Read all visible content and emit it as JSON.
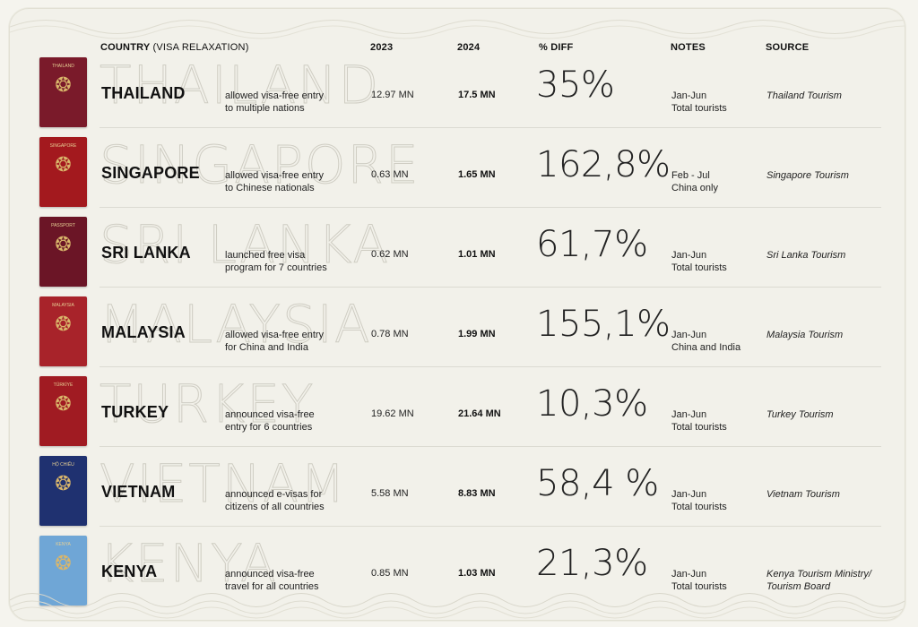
{
  "headers": {
    "country": "COUNTRY",
    "country_sub": "(VISA RELAXATION)",
    "y2023": "2023",
    "y2024": "2024",
    "diff": "% DIFF",
    "notes": "NOTES",
    "source": "SOURCE"
  },
  "rows": [
    {
      "country": "THAILAND",
      "watermark": "THAILAND",
      "desc": [
        "allowed visa-free entry",
        "to multiple nations"
      ],
      "v2023": "12.97 MN",
      "v2024": "17.5 MN",
      "diff": "35%",
      "notes": [
        "Jan-Jun",
        "Total tourists"
      ],
      "source": [
        "Thailand Tourism",
        ""
      ],
      "passport_color": "#7a1a2a",
      "passport_title": "THAILAND"
    },
    {
      "country": "SINGAPORE",
      "watermark": "SINGAPORE",
      "desc": [
        "allowed visa-free entry",
        "to Chinese nationals"
      ],
      "v2023": "0.63 MN",
      "v2024": "1.65 MN",
      "diff": "162,8%",
      "notes": [
        "Feb - Jul",
        "China only"
      ],
      "source": [
        "Singapore Tourism",
        ""
      ],
      "passport_color": "#a3191e",
      "passport_title": "SINGAPORE"
    },
    {
      "country": "SRI LANKA",
      "watermark": "SRI LANKA",
      "desc": [
        "launched free visa",
        "program for 7 countries"
      ],
      "v2023": "0.62 MN",
      "v2024": "1.01 MN",
      "diff": "61,7%",
      "notes": [
        "Jan-Jun",
        "Total tourists"
      ],
      "source": [
        "Sri Lanka Tourism",
        ""
      ],
      "passport_color": "#6b1526",
      "passport_title": "PASSPORT"
    },
    {
      "country": "MALAYSIA",
      "watermark": "MALAYSIA",
      "desc": [
        "allowed visa-free entry",
        "for China and India"
      ],
      "v2023": "0.78 MN",
      "v2024": "1.99 MN",
      "diff": "155,1%",
      "notes": [
        "Jan-Jun",
        "China and India"
      ],
      "source": [
        "Malaysia Tourism",
        ""
      ],
      "passport_color": "#a8232a",
      "passport_title": "MALAYSIA"
    },
    {
      "country": "TURKEY",
      "watermark": "TURKEY",
      "desc": [
        "announced visa-free",
        "entry for 6 countries"
      ],
      "v2023": "19.62 MN",
      "v2024": "21.64 MN",
      "diff": "10,3%",
      "notes": [
        "Jan-Jun",
        "Total tourists"
      ],
      "source": [
        "Turkey Tourism",
        ""
      ],
      "passport_color": "#a01b22",
      "passport_title": "TÜRKİYE"
    },
    {
      "country": "VIETNAM",
      "watermark": "VIETNAM",
      "desc": [
        "announced e-visas for",
        "citizens of all countries"
      ],
      "v2023": "5.58 MN",
      "v2024": "8.83 MN",
      "diff": "58,4 %",
      "notes": [
        "Jan-Jun",
        "Total tourists"
      ],
      "source": [
        "Vietnam Tourism",
        ""
      ],
      "passport_color": "#1f3170",
      "passport_title": "HỘ CHIẾU"
    },
    {
      "country": "KENYA",
      "watermark": "KENYA",
      "desc": [
        "announced visa-free",
        "travel for all countries"
      ],
      "v2023": "0.85 MN",
      "v2024": "1.03 MN",
      "diff": "21,3%",
      "notes": [
        "Jan-Jun",
        "Total tourists"
      ],
      "source": [
        "Kenya Tourism Ministry/",
        "Tourism Board"
      ],
      "passport_color": "#6fa6d6",
      "passport_title": "KENYA"
    }
  ]
}
